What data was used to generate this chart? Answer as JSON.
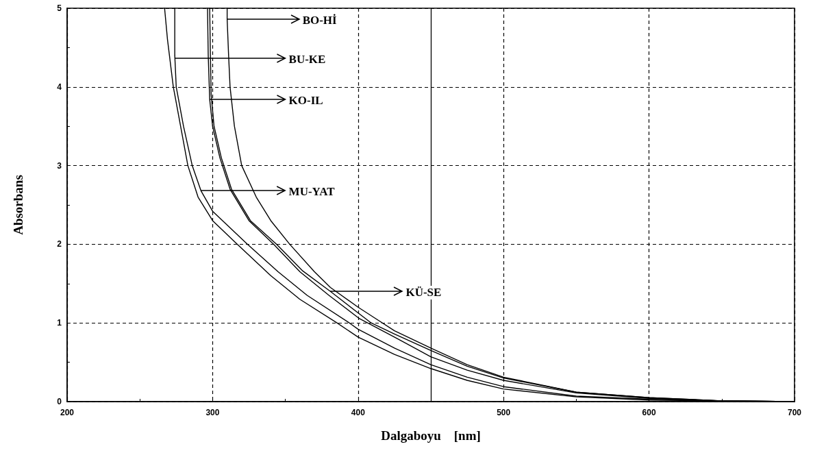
{
  "chart_data": {
    "type": "line",
    "xlabel": "Dalgaboyu    [nm]",
    "ylabel": "Absorbans",
    "xlim": [
      200,
      700
    ],
    "xticks": [
      200,
      300,
      400,
      500,
      600,
      700
    ],
    "ylim": [
      0,
      5
    ],
    "yticks": [
      0,
      1,
      2,
      3,
      4,
      5
    ],
    "grid": true,
    "line_style": "solid",
    "ref_lines": [
      {
        "axis": "x",
        "value": 450,
        "label": null,
        "color": "#000000",
        "line_style": "solid"
      }
    ],
    "annotations": [
      {
        "text": "BO-Hİ",
        "x": 310,
        "y": 4.86
      },
      {
        "text": "BU-KE",
        "x": 274,
        "y": 4.36
      },
      {
        "text": "KO-IL",
        "x": 298,
        "y": 3.84
      },
      {
        "text": "MU-YAT",
        "x": 292,
        "y": 2.68
      },
      {
        "text": "KÜ-SE",
        "x": 381,
        "y": 1.4
      }
    ],
    "series": [
      {
        "color": "#000000",
        "x": [
          267,
          269,
          273,
          278,
          283,
          290,
          300,
          317,
          340,
          360,
          385.5,
          400,
          425,
          450,
          475,
          500,
          550,
          600,
          650,
          700
        ],
        "values": [
          5,
          4.6,
          4.0,
          3.5,
          3.0,
          2.6,
          2.3,
          2.0,
          1.6,
          1.3,
          1.0,
          0.82,
          0.6,
          0.42,
          0.27,
          0.16,
          0.06,
          0.02,
          0.01,
          0
        ]
      },
      {
        "color": "#000000",
        "x": [
          274,
          274,
          275,
          280,
          286,
          292,
          300,
          324,
          345,
          365,
          394,
          400,
          425,
          450,
          475,
          500,
          550,
          600,
          650,
          700
        ],
        "values": [
          5,
          4.4,
          4.0,
          3.5,
          3.0,
          2.68,
          2.42,
          2.0,
          1.65,
          1.35,
          1.0,
          0.92,
          0.68,
          0.47,
          0.31,
          0.19,
          0.07,
          0.03,
          0.01,
          0
        ]
      },
      {
        "color": "#000000",
        "x": [
          296.5,
          297,
          298,
          300,
          305,
          312,
          325,
          342,
          360,
          380,
          400.5,
          425,
          450,
          475,
          500,
          550,
          600,
          650,
          700
        ],
        "values": [
          5,
          4.4,
          3.84,
          3.5,
          3.1,
          2.7,
          2.3,
          2.0,
          1.65,
          1.35,
          1.06,
          0.82,
          0.57,
          0.4,
          0.27,
          0.11,
          0.04,
          0.01,
          0
        ]
      },
      {
        "color": "#000000",
        "x": [
          298,
          298.5,
          299,
          301,
          306,
          313,
          326,
          344,
          362,
          381,
          409,
          425,
          450,
          475,
          500,
          550,
          600,
          650,
          700
        ],
        "values": [
          5,
          4.4,
          3.9,
          3.5,
          3.1,
          2.7,
          2.3,
          2.0,
          1.66,
          1.4,
          1.0,
          0.86,
          0.65,
          0.45,
          0.3,
          0.12,
          0.05,
          0.01,
          0
        ]
      },
      {
        "color": "#000000",
        "x": [
          310,
          310,
          311,
          312,
          315,
          320,
          330,
          340,
          353,
          370,
          381,
          400,
          410,
          425,
          450,
          475,
          500,
          550,
          600,
          650,
          700
        ],
        "values": [
          5,
          4.86,
          4.4,
          4.0,
          3.5,
          3.0,
          2.6,
          2.3,
          2.0,
          1.65,
          1.45,
          1.2,
          1.08,
          0.9,
          0.68,
          0.47,
          0.31,
          0.12,
          0.05,
          0.01,
          0
        ]
      }
    ]
  }
}
